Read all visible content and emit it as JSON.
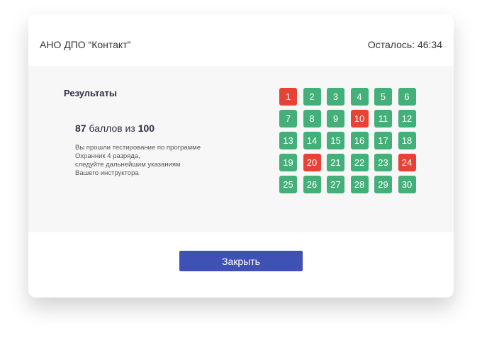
{
  "header": {
    "org": "АНО ДПО “Контакт”",
    "timer": "Осталось: 46:34"
  },
  "results": {
    "title": "Результаты",
    "score": "87",
    "score_mid": " баллов из ",
    "score_max": "100",
    "message": [
      "Вы прошли тестирование по программе",
      "Охранник 4 разряда,",
      "следуйте дальнейшим указаниям",
      "Вашего инструктора"
    ]
  },
  "colors": {
    "correct": "#43b07a",
    "wrong": "#e74335",
    "button": "#3f51b5"
  },
  "questions": [
    {
      "n": "1",
      "ok": false
    },
    {
      "n": "2",
      "ok": true
    },
    {
      "n": "3",
      "ok": true
    },
    {
      "n": "4",
      "ok": true
    },
    {
      "n": "5",
      "ok": true
    },
    {
      "n": "6",
      "ok": true
    },
    {
      "n": "7",
      "ok": true
    },
    {
      "n": "8",
      "ok": true
    },
    {
      "n": "9",
      "ok": true
    },
    {
      "n": "10",
      "ok": false
    },
    {
      "n": "11",
      "ok": true
    },
    {
      "n": "12",
      "ok": true
    },
    {
      "n": "13",
      "ok": true
    },
    {
      "n": "14",
      "ok": true
    },
    {
      "n": "15",
      "ok": true
    },
    {
      "n": "16",
      "ok": true
    },
    {
      "n": "17",
      "ok": true
    },
    {
      "n": "18",
      "ok": true
    },
    {
      "n": "19",
      "ok": true
    },
    {
      "n": "20",
      "ok": false
    },
    {
      "n": "21",
      "ok": true
    },
    {
      "n": "22",
      "ok": true
    },
    {
      "n": "23",
      "ok": true
    },
    {
      "n": "24",
      "ok": false
    },
    {
      "n": "25",
      "ok": true
    },
    {
      "n": "26",
      "ok": true
    },
    {
      "n": "27",
      "ok": true
    },
    {
      "n": "28",
      "ok": true
    },
    {
      "n": "29",
      "ok": true
    },
    {
      "n": "30",
      "ok": true
    }
  ],
  "close_label": "Закрыть"
}
